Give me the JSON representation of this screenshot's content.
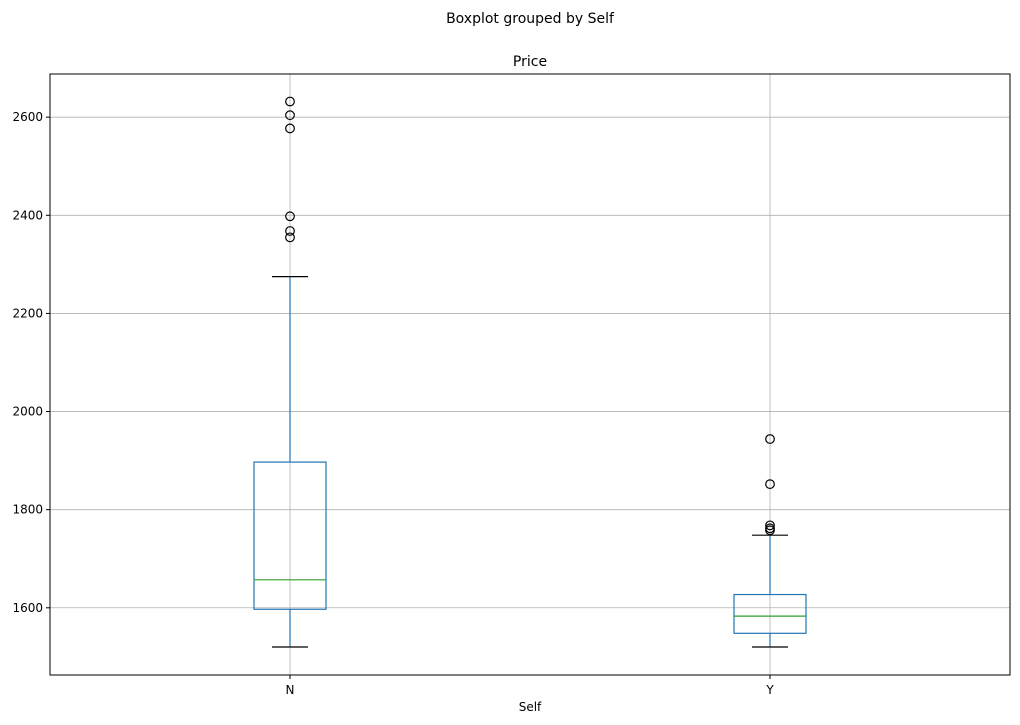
{
  "chart_data": {
    "type": "boxplot",
    "suptitle": "Boxplot grouped by Self",
    "title": "Price",
    "xlabel": "Self",
    "ylabel": "",
    "ylim": [
      1463,
      2688
    ],
    "yticks": [
      1600,
      1800,
      2000,
      2200,
      2400,
      2600
    ],
    "grid": true,
    "categories": [
      "N",
      "Y"
    ],
    "boxes": [
      {
        "category": "N",
        "whisker_low": 1520,
        "q1": 1597,
        "median": 1657,
        "q3": 1897,
        "whisker_high": 2275,
        "outliers": [
          2355,
          2368,
          2398,
          2577,
          2604,
          2632
        ]
      },
      {
        "category": "Y",
        "whisker_low": 1520,
        "q1": 1548,
        "median": 1583,
        "q3": 1627,
        "whisker_high": 1748,
        "outliers": [
          1758,
          1762,
          1768,
          1852,
          1944
        ]
      }
    ],
    "colors": {
      "box": "#1f77b4",
      "median": "#2ca02c",
      "cap": "#000000",
      "outlier": "#000000",
      "grid": "#b0b0b0"
    }
  }
}
